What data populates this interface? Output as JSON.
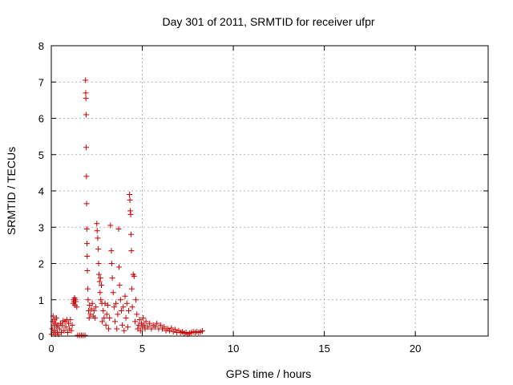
{
  "chart_data": {
    "type": "scatter",
    "title": "Day 301 of 2011, SRMTID for receiver ufpr",
    "xlabel": "GPS time / hours",
    "ylabel": "SRMTID / TECUs",
    "xlim": [
      0,
      24
    ],
    "ylim": [
      0,
      8
    ],
    "xticks": [
      0,
      5,
      10,
      15,
      20
    ],
    "yticks": [
      0,
      1,
      2,
      3,
      4,
      5,
      6,
      7,
      8
    ],
    "grid": true,
    "marker": "plus",
    "color": "#cc0000",
    "series": [
      {
        "name": "SRMTID",
        "points": [
          [
            0.02,
            0.05
          ],
          [
            0.05,
            0.2
          ],
          [
            0.08,
            0.4
          ],
          [
            0.1,
            0.55
          ],
          [
            0.12,
            0.1
          ],
          [
            0.15,
            0.3
          ],
          [
            0.18,
            0.45
          ],
          [
            0.2,
            0.15
          ],
          [
            0.22,
            0.05
          ],
          [
            0.25,
            0.35
          ],
          [
            0.28,
            0.5
          ],
          [
            0.3,
            0.25
          ],
          [
            0.33,
            0.1
          ],
          [
            0.36,
            0.3
          ],
          [
            0.4,
            0.05
          ],
          [
            0.45,
            0.2
          ],
          [
            0.5,
            0.35
          ],
          [
            0.55,
            0.1
          ],
          [
            0.6,
            0.3
          ],
          [
            0.65,
            0.42
          ],
          [
            0.7,
            0.15
          ],
          [
            0.75,
            0.4
          ],
          [
            0.8,
            0.25
          ],
          [
            0.85,
            0.45
          ],
          [
            0.9,
            0.1
          ],
          [
            0.95,
            0.35
          ],
          [
            1.0,
            0.2
          ],
          [
            1.05,
            0.45
          ],
          [
            1.1,
            0.15
          ],
          [
            1.15,
            0.3
          ],
          [
            1.2,
            0.9
          ],
          [
            1.22,
            1.0
          ],
          [
            1.25,
            0.95
          ],
          [
            1.28,
            1.05
          ],
          [
            1.3,
            0.85
          ],
          [
            1.32,
            1.0
          ],
          [
            1.35,
            0.95
          ],
          [
            1.4,
            0.8
          ],
          [
            1.45,
            0.02
          ],
          [
            1.55,
            0.02
          ],
          [
            1.65,
            0.02
          ],
          [
            1.75,
            0.02
          ],
          [
            1.85,
            0.02
          ],
          [
            1.88,
            7.05
          ],
          [
            1.89,
            6.7
          ],
          [
            1.9,
            6.55
          ],
          [
            1.91,
            6.1
          ],
          [
            1.92,
            5.2
          ],
          [
            1.93,
            4.4
          ],
          [
            1.94,
            3.65
          ],
          [
            1.95,
            2.95
          ],
          [
            1.96,
            2.55
          ],
          [
            1.97,
            2.2
          ],
          [
            1.98,
            1.8
          ],
          [
            2.0,
            1.3
          ],
          [
            2.02,
            1.0
          ],
          [
            2.05,
            0.7
          ],
          [
            2.08,
            0.5
          ],
          [
            2.1,
            0.85
          ],
          [
            2.15,
            0.6
          ],
          [
            2.2,
            0.75
          ],
          [
            2.25,
            0.9
          ],
          [
            2.3,
            0.55
          ],
          [
            2.35,
            0.7
          ],
          [
            2.4,
            0.5
          ],
          [
            2.45,
            0.8
          ],
          [
            2.5,
            3.1
          ],
          [
            2.52,
            2.9
          ],
          [
            2.55,
            2.7
          ],
          [
            2.58,
            2.4
          ],
          [
            2.6,
            2.0
          ],
          [
            2.62,
            1.7
          ],
          [
            2.65,
            1.5
          ],
          [
            2.68,
            1.2
          ],
          [
            2.7,
            1.6
          ],
          [
            2.72,
            1.0
          ],
          [
            2.75,
            1.4
          ],
          [
            2.78,
            0.9
          ],
          [
            2.8,
            0.4
          ],
          [
            2.85,
            0.7
          ],
          [
            2.9,
            0.5
          ],
          [
            2.95,
            0.9
          ],
          [
            3.0,
            0.3
          ],
          [
            3.05,
            0.6
          ],
          [
            3.1,
            0.85
          ],
          [
            3.15,
            0.2
          ],
          [
            3.2,
            0.5
          ],
          [
            3.25,
            3.05
          ],
          [
            3.3,
            2.35
          ],
          [
            3.32,
            2.0
          ],
          [
            3.35,
            1.6
          ],
          [
            3.4,
            1.2
          ],
          [
            3.45,
            0.8
          ],
          [
            3.5,
            0.4
          ],
          [
            3.55,
            0.9
          ],
          [
            3.6,
            0.2
          ],
          [
            3.65,
            0.6
          ],
          [
            3.7,
            2.95
          ],
          [
            3.72,
            1.9
          ],
          [
            3.75,
            1.4
          ],
          [
            3.8,
            1.0
          ],
          [
            3.85,
            0.7
          ],
          [
            3.9,
            0.3
          ],
          [
            3.95,
            0.8
          ],
          [
            4.0,
            0.15
          ],
          [
            4.05,
            1.1
          ],
          [
            4.1,
            0.5
          ],
          [
            4.15,
            0.9
          ],
          [
            4.2,
            0.25
          ],
          [
            4.25,
            0.7
          ],
          [
            4.3,
            3.9
          ],
          [
            4.32,
            3.75
          ],
          [
            4.34,
            3.45
          ],
          [
            4.36,
            3.35
          ],
          [
            4.38,
            2.8
          ],
          [
            4.4,
            2.35
          ],
          [
            4.42,
            1.3
          ],
          [
            4.45,
            0.8
          ],
          [
            4.5,
            1.7
          ],
          [
            4.55,
            1.65
          ],
          [
            4.6,
            0.4
          ],
          [
            4.65,
            1.0
          ],
          [
            4.7,
            0.6
          ],
          [
            4.75,
            0.2
          ],
          [
            4.8,
            0.3
          ],
          [
            4.85,
            0.45
          ],
          [
            4.9,
            0.15
          ],
          [
            4.95,
            0.35
          ],
          [
            5.0,
            0.25
          ],
          [
            5.05,
            0.5
          ],
          [
            5.1,
            0.3
          ],
          [
            5.15,
            0.2
          ],
          [
            5.2,
            0.4
          ],
          [
            5.3,
            0.25
          ],
          [
            5.4,
            0.35
          ],
          [
            5.5,
            0.2
          ],
          [
            5.6,
            0.3
          ],
          [
            5.7,
            0.25
          ],
          [
            5.8,
            0.35
          ],
          [
            5.9,
            0.2
          ],
          [
            6.0,
            0.3
          ],
          [
            6.1,
            0.2
          ],
          [
            6.2,
            0.25
          ],
          [
            6.3,
            0.15
          ],
          [
            6.4,
            0.2
          ],
          [
            6.5,
            0.15
          ],
          [
            6.6,
            0.22
          ],
          [
            6.7,
            0.12
          ],
          [
            6.8,
            0.18
          ],
          [
            6.9,
            0.1
          ],
          [
            7.0,
            0.15
          ],
          [
            7.1,
            0.1
          ],
          [
            7.2,
            0.12
          ],
          [
            7.3,
            0.08
          ],
          [
            7.4,
            0.1
          ],
          [
            7.5,
            0.05
          ],
          [
            7.6,
            0.08
          ],
          [
            7.7,
            0.1
          ],
          [
            7.8,
            0.12
          ],
          [
            7.9,
            0.1
          ],
          [
            8.0,
            0.12
          ],
          [
            8.1,
            0.1
          ],
          [
            8.2,
            0.12
          ],
          [
            8.3,
            0.14
          ]
        ]
      }
    ]
  }
}
